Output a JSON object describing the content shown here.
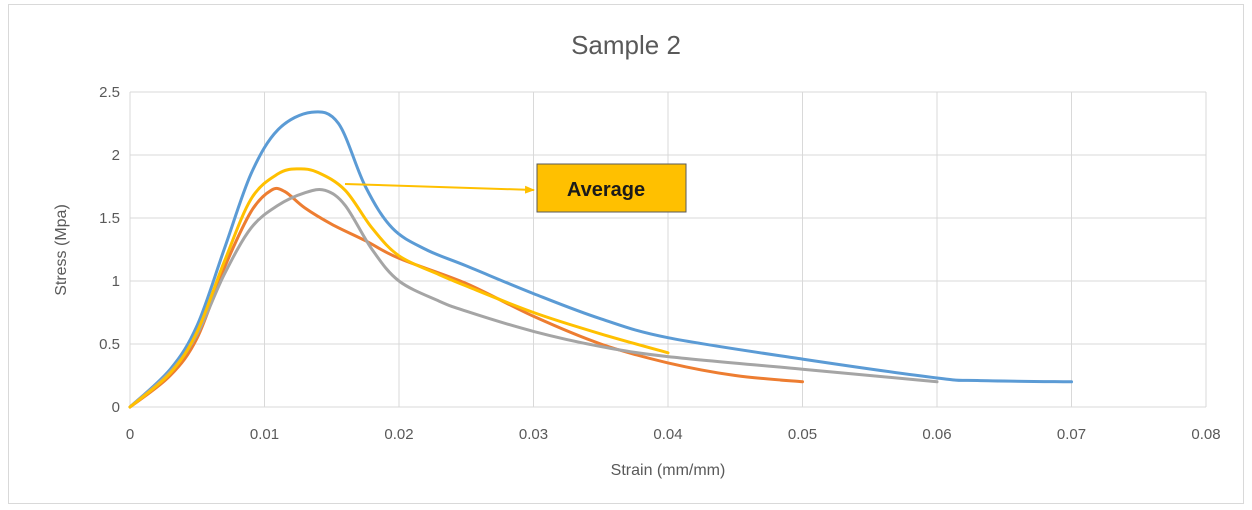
{
  "chart_data": {
    "type": "line",
    "title": "Sample 2",
    "xlabel": "Strain (mm/mm)",
    "ylabel": "Stress (Mpa)",
    "xlim": [
      0,
      0.08
    ],
    "ylim": [
      0,
      2.5
    ],
    "x_ticks": [
      "0",
      "0.01",
      "0.02",
      "0.03",
      "0.04",
      "0.05",
      "0.06",
      "0.07",
      "0.08"
    ],
    "y_ticks": [
      "0",
      "0.5",
      "1",
      "1.5",
      "2",
      "2.5"
    ],
    "grid": "vertical and horizontal",
    "legend": "none",
    "annotation": {
      "text": "Average",
      "points_to_series_color": "#FFC000",
      "box_color": "#FFC000"
    },
    "series": [
      {
        "color": "#5B9BD5",
        "points": [
          [
            0,
            0
          ],
          [
            0.003,
            0.3
          ],
          [
            0.005,
            0.65
          ],
          [
            0.007,
            1.25
          ],
          [
            0.009,
            1.85
          ],
          [
            0.011,
            2.2
          ],
          [
            0.0135,
            2.34
          ],
          [
            0.0155,
            2.25
          ],
          [
            0.0175,
            1.75
          ],
          [
            0.0195,
            1.42
          ],
          [
            0.022,
            1.25
          ],
          [
            0.025,
            1.12
          ],
          [
            0.03,
            0.9
          ],
          [
            0.035,
            0.7
          ],
          [
            0.04,
            0.55
          ],
          [
            0.05,
            0.38
          ],
          [
            0.06,
            0.23
          ],
          [
            0.063,
            0.21
          ],
          [
            0.07,
            0.2
          ]
        ]
      },
      {
        "color": "#ED7D31",
        "points": [
          [
            0,
            0
          ],
          [
            0.003,
            0.25
          ],
          [
            0.005,
            0.55
          ],
          [
            0.007,
            1.1
          ],
          [
            0.009,
            1.55
          ],
          [
            0.0105,
            1.72
          ],
          [
            0.0115,
            1.71
          ],
          [
            0.013,
            1.58
          ],
          [
            0.015,
            1.45
          ],
          [
            0.0175,
            1.32
          ],
          [
            0.02,
            1.18
          ],
          [
            0.025,
            0.98
          ],
          [
            0.03,
            0.72
          ],
          [
            0.035,
            0.5
          ],
          [
            0.04,
            0.35
          ],
          [
            0.045,
            0.25
          ],
          [
            0.05,
            0.2
          ]
        ]
      },
      {
        "color": "#A5A5A5",
        "points": [
          [
            0,
            0
          ],
          [
            0.003,
            0.28
          ],
          [
            0.005,
            0.58
          ],
          [
            0.007,
            1.05
          ],
          [
            0.009,
            1.42
          ],
          [
            0.011,
            1.6
          ],
          [
            0.013,
            1.7
          ],
          [
            0.0145,
            1.72
          ],
          [
            0.016,
            1.6
          ],
          [
            0.018,
            1.25
          ],
          [
            0.02,
            1.0
          ],
          [
            0.023,
            0.84
          ],
          [
            0.025,
            0.76
          ],
          [
            0.03,
            0.6
          ],
          [
            0.035,
            0.48
          ],
          [
            0.04,
            0.4
          ],
          [
            0.05,
            0.3
          ],
          [
            0.06,
            0.2
          ]
        ]
      },
      {
        "color": "#FFC000",
        "points": [
          [
            0,
            0
          ],
          [
            0.003,
            0.27
          ],
          [
            0.005,
            0.6
          ],
          [
            0.007,
            1.15
          ],
          [
            0.009,
            1.65
          ],
          [
            0.011,
            1.85
          ],
          [
            0.0125,
            1.89
          ],
          [
            0.014,
            1.86
          ],
          [
            0.016,
            1.72
          ],
          [
            0.018,
            1.42
          ],
          [
            0.02,
            1.2
          ],
          [
            0.023,
            1.05
          ],
          [
            0.025,
            0.96
          ],
          [
            0.03,
            0.75
          ],
          [
            0.035,
            0.58
          ],
          [
            0.04,
            0.43
          ]
        ]
      }
    ]
  }
}
